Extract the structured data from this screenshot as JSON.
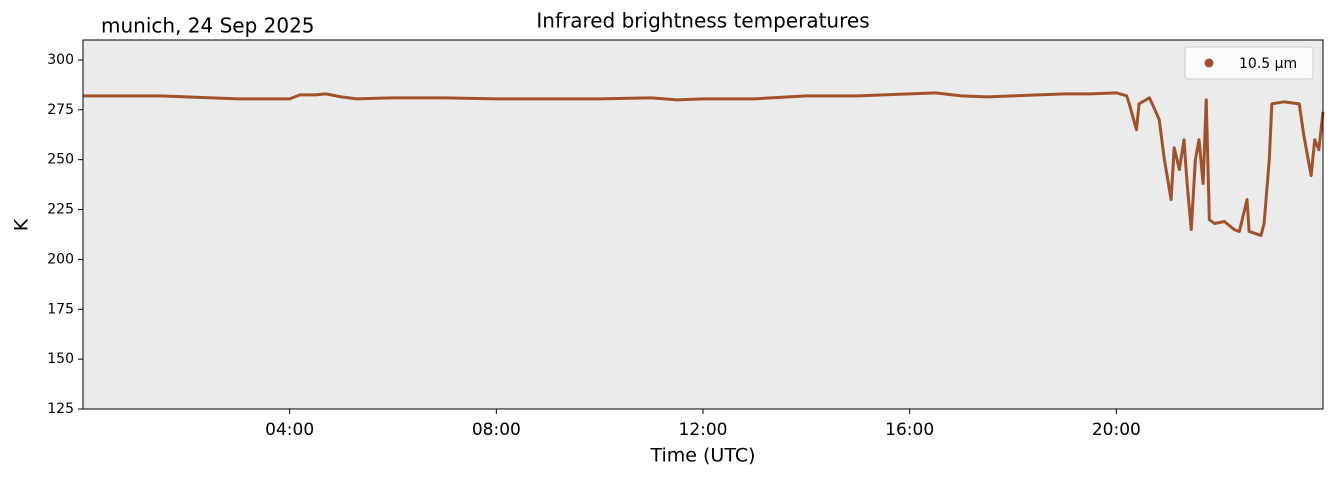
{
  "chart_data": {
    "type": "line",
    "title": "Infrared brightness temperatures",
    "subtitle": "munich, 24 Sep 2025",
    "x_label": "Time (UTC)",
    "y_label": "K",
    "x": [
      0,
      0.5,
      1,
      1.5,
      2,
      2.5,
      3,
      3.5,
      4,
      4.2,
      4.5,
      4.7,
      5,
      5.3,
      6,
      7,
      8,
      9,
      10,
      11,
      11.5,
      12,
      13,
      14,
      15,
      15.5,
      16,
      16.5,
      17,
      17.5,
      18,
      19,
      19.5,
      20,
      20.2,
      20.25,
      20.39,
      20.44,
      20.64,
      20.73,
      20.83,
      20.93,
      21.06,
      21.12,
      21.22,
      21.31,
      21.37,
      21.45,
      21.53,
      21.6,
      21.68,
      21.74,
      21.8,
      21.9,
      22.09,
      22.28,
      22.38,
      22.53,
      22.57,
      22.8,
      22.86,
      22.96,
      23.01,
      23.25,
      23.54,
      23.63,
      23.77,
      23.84,
      23.92,
      24
    ],
    "series": [
      {
        "name": "10.5 µm",
        "color": "#a0522d",
        "values": [
          282,
          282,
          282,
          282,
          281.5,
          281,
          280.5,
          280.5,
          280.5,
          282.5,
          282.5,
          283,
          281.5,
          280.5,
          281,
          281,
          280.5,
          280.5,
          280.5,
          281,
          280,
          280.5,
          280.5,
          282,
          282,
          282.5,
          283,
          283.5,
          282,
          281.5,
          282,
          283,
          283,
          283.5,
          282,
          278,
          265,
          278,
          281,
          276,
          270,
          250,
          230,
          256,
          245,
          260,
          238,
          215,
          250,
          260,
          238,
          280,
          220,
          218,
          219,
          215,
          214,
          230,
          214,
          212,
          218,
          250,
          278,
          279,
          278,
          262,
          242,
          260,
          255,
          274
        ]
      }
    ],
    "xlim": [
      0,
      24
    ],
    "xticks": [
      {
        "value": 4,
        "label": "04:00"
      },
      {
        "value": 8,
        "label": "08:00"
      },
      {
        "value": 12,
        "label": "12:00"
      },
      {
        "value": 16,
        "label": "16:00"
      },
      {
        "value": 20,
        "label": "20:00"
      }
    ],
    "ylim": [
      125,
      310
    ],
    "yticks": [
      125,
      150,
      175,
      200,
      225,
      250,
      275,
      300
    ],
    "legend": "upper right",
    "background": "#ebebeb"
  }
}
